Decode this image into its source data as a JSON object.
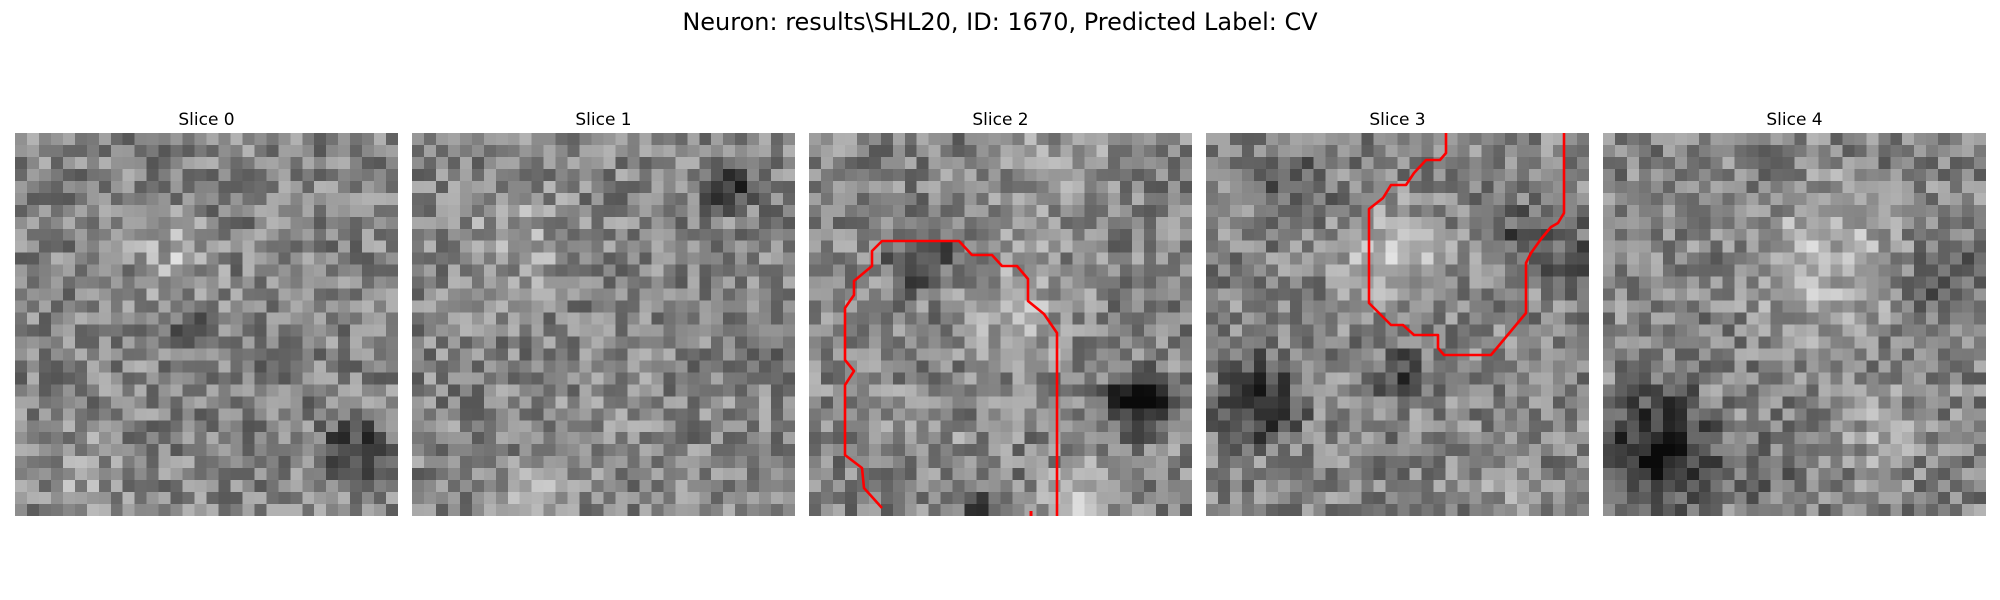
{
  "figure": {
    "suptitle": "Neuron: results\\SHL20, ID: 1670, Predicted Label: CV"
  },
  "panels": [
    {
      "title": "Slice 0",
      "image": "grayscale microscopy patch",
      "contour_color": "",
      "has_contour": false
    },
    {
      "title": "Slice 1",
      "image": "grayscale microscopy patch",
      "contour_color": "",
      "has_contour": false
    },
    {
      "title": "Slice 2",
      "image": "grayscale microscopy patch",
      "contour_color": "#ff0000",
      "has_contour": true
    },
    {
      "title": "Slice 3",
      "image": "grayscale microscopy patch",
      "contour_color": "#ff0000",
      "has_contour": true
    },
    {
      "title": "Slice 4",
      "image": "grayscale microscopy patch",
      "contour_color": "",
      "has_contour": false
    }
  ]
}
